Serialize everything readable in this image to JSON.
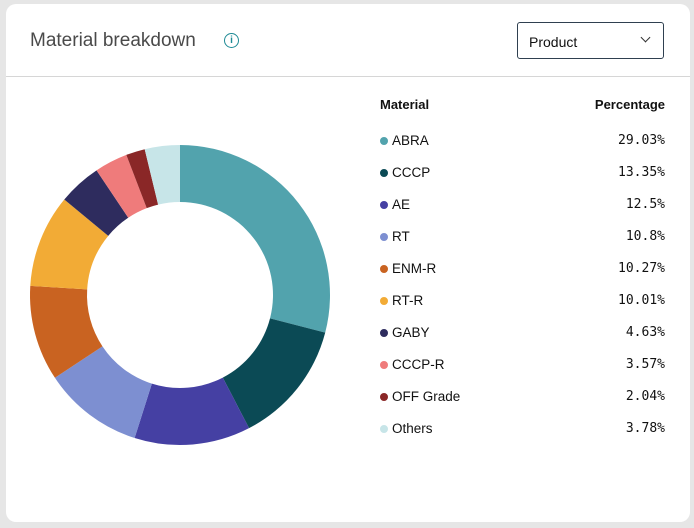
{
  "header": {
    "title": "Material breakdown",
    "info_icon": "info-icon",
    "dropdown": {
      "value": "Product",
      "icon": "chevron-down-icon"
    }
  },
  "table": {
    "col_material": "Material",
    "col_percentage": "Percentage"
  },
  "chart_data": {
    "type": "pie",
    "variant": "donut",
    "categories": [
      "ABRA",
      "CCCP",
      "AE",
      "RT",
      "ENM-R",
      "RT-R",
      "GABY",
      "CCCP-R",
      "OFF Grade",
      "Others"
    ],
    "values": [
      29.03,
      13.35,
      12.5,
      10.8,
      10.27,
      10.01,
      4.63,
      3.57,
      2.04,
      3.78
    ],
    "labels": [
      "29.03%",
      "13.35%",
      "12.5%",
      "10.8%",
      "10.27%",
      "10.01%",
      "4.63%",
      "3.57%",
      "2.04%",
      "3.78%"
    ],
    "colors": [
      "#52a3ad",
      "#0b4a55",
      "#4540a3",
      "#7d8fd1",
      "#c96321",
      "#f2ab36",
      "#2e2c5e",
      "#ef7b7b",
      "#8a2727",
      "#c7e5e8"
    ],
    "legend": "right"
  }
}
